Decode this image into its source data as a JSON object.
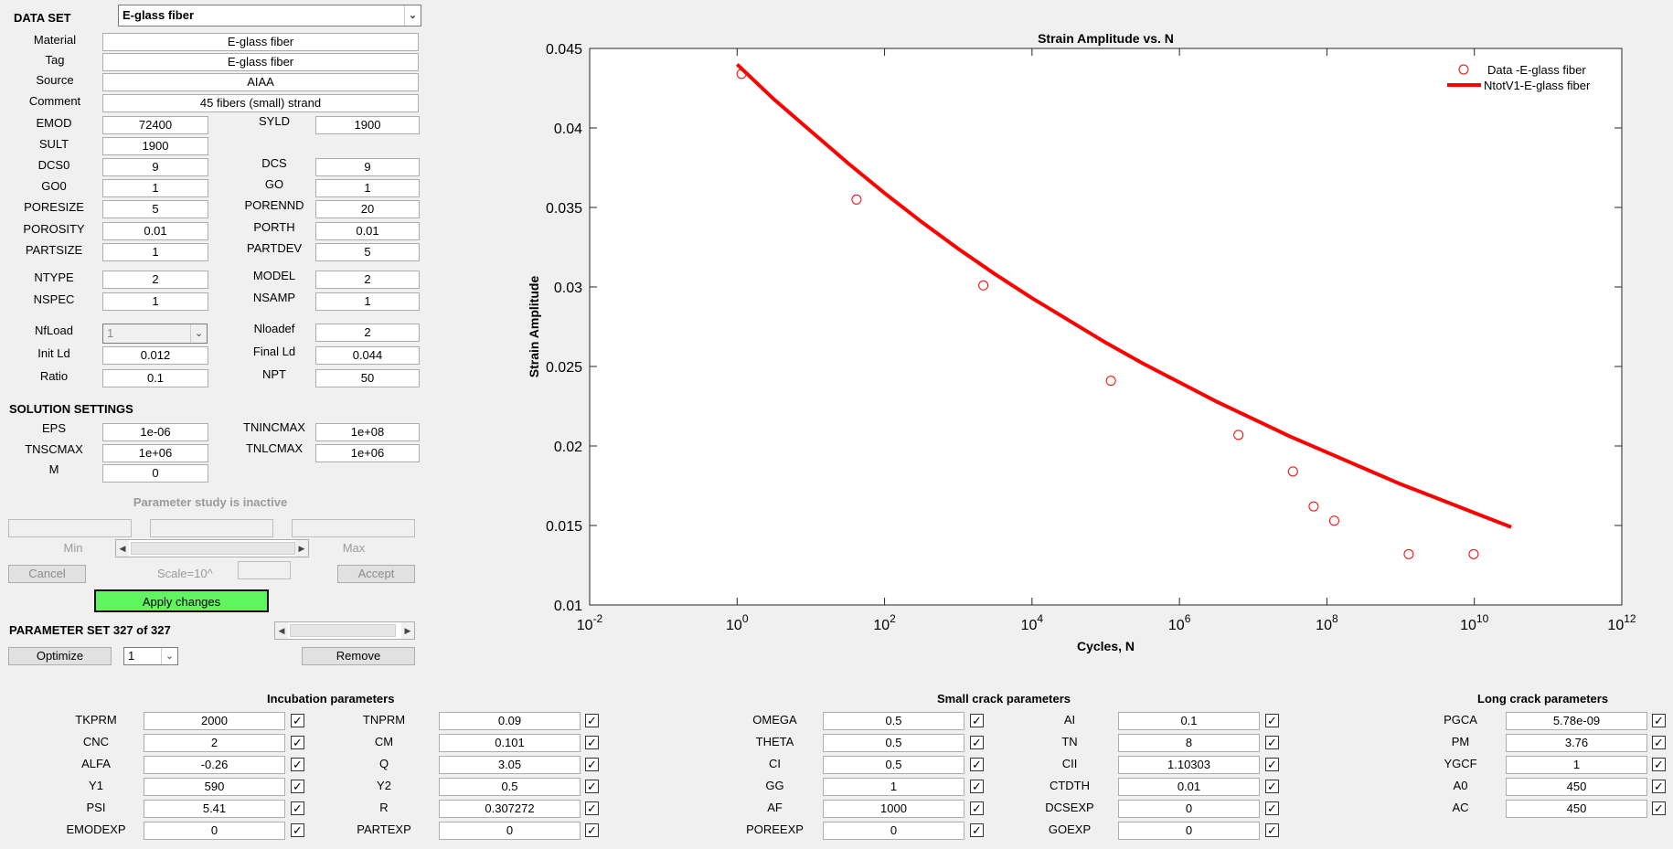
{
  "dataset": {
    "label": "DATA SET",
    "value": "E-glass fiber"
  },
  "meta": [
    {
      "label": "Material",
      "value": "E-glass fiber"
    },
    {
      "label": "Tag",
      "value": "E-glass fiber"
    },
    {
      "label": "Source",
      "value": "AIAA"
    },
    {
      "label": "Comment",
      "value": "45 fibers (small) strand"
    }
  ],
  "params": [
    {
      "l1": "EMOD",
      "v1": "72400",
      "l2": "SYLD",
      "v2": "1900"
    },
    {
      "l1": "SULT",
      "v1": "1900",
      "l2": "",
      "v2": ""
    },
    {
      "l1": "DCS0",
      "v1": "9",
      "l2": "DCS",
      "v2": "9"
    },
    {
      "l1": "GO0",
      "v1": "1",
      "l2": "GO",
      "v2": "1"
    },
    {
      "l1": "PORESIZE",
      "v1": "5",
      "l2": "PORENND",
      "v2": "20"
    },
    {
      "l1": "POROSITY",
      "v1": "0.01",
      "l2": "PORTH",
      "v2": "0.01"
    },
    {
      "l1": "PARTSIZE",
      "v1": "1",
      "l2": "PARTDEV",
      "v2": "5"
    },
    {
      "l1": "NTYPE",
      "v1": "2",
      "l2": "MODEL",
      "v2": "2"
    },
    {
      "l1": "NSPEC",
      "v1": "1",
      "l2": "NSAMP",
      "v2": "1"
    },
    {
      "l1": "NfLoad",
      "v1": "1",
      "l2": "Nloadef",
      "v2": "2"
    },
    {
      "l1": "Init Ld",
      "v1": "0.012",
      "l2": "Final Ld",
      "v2": "0.044"
    },
    {
      "l1": "Ratio",
      "v1": "0.1",
      "l2": "NPT",
      "v2": "50"
    }
  ],
  "solution": {
    "title": "SOLUTION SETTINGS",
    "rows": [
      {
        "l1": "EPS",
        "v1": "1e-06",
        "l2": "TNINCMAX",
        "v2": "1e+08"
      },
      {
        "l1": "TNSCMAX",
        "v1": "1e+06",
        "l2": "TNLCMAX",
        "v2": "1e+06"
      },
      {
        "l1": "M",
        "v1": "0",
        "l2": "",
        "v2": ""
      }
    ]
  },
  "study": {
    "status": "Parameter study is inactive",
    "min": "Min",
    "max": "Max",
    "cancel": "Cancel",
    "scale": "Scale=10^",
    "accept": "Accept",
    "apply": "Apply changes"
  },
  "paramset": {
    "label": "PARAMETER SET 327 of 327",
    "optimize": "Optimize",
    "select": "1",
    "remove": "Remove"
  },
  "incubation": {
    "title": "Incubation parameters",
    "rows": [
      {
        "l1": "TKPRM",
        "v1": "2000",
        "l2": "TNPRM",
        "v2": "0.09"
      },
      {
        "l1": "CNC",
        "v1": "2",
        "l2": "CM",
        "v2": "0.101"
      },
      {
        "l1": "ALFA",
        "v1": "-0.26",
        "l2": "Q",
        "v2": "3.05"
      },
      {
        "l1": "Y1",
        "v1": "590",
        "l2": "Y2",
        "v2": "0.5"
      },
      {
        "l1": "PSI",
        "v1": "5.41",
        "l2": "R",
        "v2": "0.307272"
      },
      {
        "l1": "EMODEXP",
        "v1": "0",
        "l2": "PARTEXP",
        "v2": "0"
      }
    ]
  },
  "smallcrack": {
    "title": "Small crack parameters",
    "rows": [
      {
        "l1": "OMEGA",
        "v1": "0.5",
        "l2": "AI",
        "v2": "0.1"
      },
      {
        "l1": "THETA",
        "v1": "0.5",
        "l2": "TN",
        "v2": "8"
      },
      {
        "l1": "CI",
        "v1": "0.5",
        "l2": "CII",
        "v2": "1.10303"
      },
      {
        "l1": "GG",
        "v1": "1",
        "l2": "CTDTH",
        "v2": "0.01"
      },
      {
        "l1": "AF",
        "v1": "1000",
        "l2": "DCSEXP",
        "v2": "0"
      },
      {
        "l1": "POREEXP",
        "v1": "0",
        "l2": "GOEXP",
        "v2": "0"
      }
    ]
  },
  "longcrack": {
    "title": "Long crack parameters",
    "rows": [
      {
        "l": "PGCA",
        "v": "5.78e-09"
      },
      {
        "l": "PM",
        "v": "3.76"
      },
      {
        "l": "YGCF",
        "v": "1"
      },
      {
        "l": "A0",
        "v": "450"
      },
      {
        "l": "AC",
        "v": "450"
      }
    ]
  },
  "chart_data": {
    "type": "scatter+line",
    "title": "Strain Amplitude vs. N",
    "xlabel": "Cycles, N",
    "ylabel": "Strain Amplitude",
    "xscale": "log",
    "xlim_exp": [
      -2,
      12
    ],
    "ylim": [
      0.01,
      0.045
    ],
    "xticks": [
      "-2",
      "0",
      "2",
      "4",
      "6",
      "8",
      "10",
      "12"
    ],
    "yticks": [
      "0.01",
      "0.015",
      "0.02",
      "0.025",
      "0.03",
      "0.035",
      "0.04",
      "0.045"
    ],
    "legend_position": "top-right",
    "marker_color": "#ff0000",
    "series": [
      {
        "name": "Data -E-glass fiber",
        "kind": "markers",
        "log10x": [
          0.06,
          1.62,
          3.34,
          5.07,
          6.8,
          7.54,
          7.82,
          8.1,
          9.11,
          9.99
        ],
        "y": [
          0.0434,
          0.0355,
          0.0301,
          0.0241,
          0.0207,
          0.0184,
          0.0162,
          0.0153,
          0.0132,
          0.0132
        ]
      },
      {
        "name": "NtotV1-E-glass fiber",
        "kind": "line",
        "log10x": [
          0,
          0.5,
          1,
          1.5,
          2,
          2.5,
          3,
          3.5,
          4,
          4.5,
          5,
          5.5,
          6,
          6.5,
          7,
          7.5,
          8,
          8.5,
          9,
          9.5,
          10,
          10.5
        ],
        "y": [
          0.044,
          0.0418,
          0.0398,
          0.0378,
          0.0359,
          0.0341,
          0.0324,
          0.0308,
          0.0293,
          0.0279,
          0.0265,
          0.0252,
          0.024,
          0.0228,
          0.0217,
          0.0206,
          0.0196,
          0.0186,
          0.0176,
          0.0167,
          0.0158,
          0.0149
        ]
      }
    ]
  }
}
